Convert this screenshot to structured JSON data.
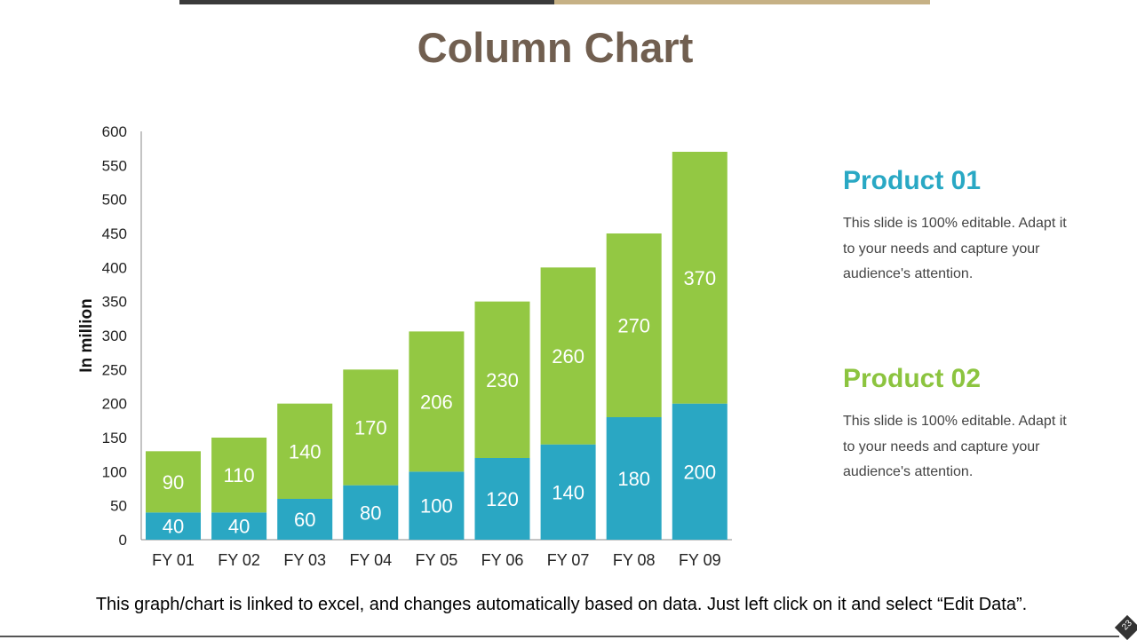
{
  "slide": {
    "title": "Column Chart",
    "footer": "This graph/chart is linked to excel, and changes automatically based on data. Just left click on it and select “Edit Data”.",
    "page_number": "23"
  },
  "products": [
    {
      "title": "Product 01",
      "description": "This slide is 100% editable. Adapt it to your needs and capture your audience's attention.",
      "color": "#29a8c4"
    },
    {
      "title": "Product 02",
      "description": "This slide is 100% editable. Adapt it to your needs and capture your audience's attention.",
      "color": "#8cc43f"
    }
  ],
  "chart_data": {
    "type": "bar",
    "stacked": true,
    "categories": [
      "FY 01",
      "FY 02",
      "FY 03",
      "FY 04",
      "FY 05",
      "FY 06",
      "FY 07",
      "FY 08",
      "FY 09"
    ],
    "series": [
      {
        "values": [
          40,
          40,
          60,
          80,
          100,
          120,
          140,
          180,
          200
        ],
        "color": "#2aa7c3"
      },
      {
        "values": [
          90,
          110,
          140,
          170,
          206,
          230,
          260,
          270,
          370
        ],
        "color": "#93c843"
      }
    ],
    "ylabel": "In million",
    "ylim": [
      0,
      600
    ],
    "yticks": [
      0,
      50,
      100,
      150,
      200,
      250,
      300,
      350,
      400,
      450,
      500,
      550,
      600
    ],
    "grid": false,
    "data_labels": true
  }
}
